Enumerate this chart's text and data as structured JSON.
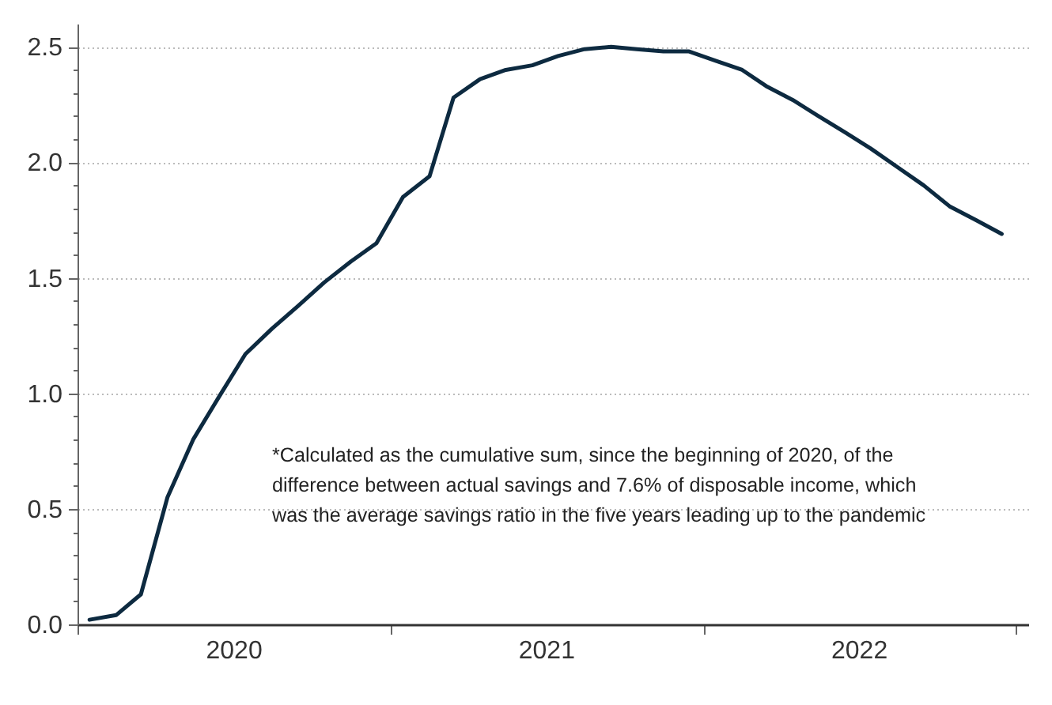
{
  "chart_data": {
    "type": "line",
    "x": [
      "2020-01-15",
      "2020-02-15",
      "2020-03-15",
      "2020-04-15",
      "2020-05-15",
      "2020-06-15",
      "2020-07-15",
      "2020-08-15",
      "2020-09-15",
      "2020-10-15",
      "2020-11-15",
      "2020-12-15",
      "2021-01-15",
      "2021-02-15",
      "2021-03-15",
      "2021-04-15",
      "2021-05-15",
      "2021-06-15",
      "2021-07-15",
      "2021-08-15",
      "2021-09-15",
      "2021-10-15",
      "2021-11-15",
      "2021-12-15",
      "2022-01-15",
      "2022-02-15",
      "2022-03-15",
      "2022-04-15",
      "2022-05-15",
      "2022-06-15",
      "2022-07-15",
      "2022-08-15",
      "2022-09-15",
      "2022-10-15",
      "2022-11-15",
      "2022-12-15"
    ],
    "series": [
      {
        "color": "#0d2a40",
        "values": [
          0.02,
          0.04,
          0.13,
          0.55,
          0.8,
          0.99,
          1.17,
          1.28,
          1.38,
          1.48,
          1.57,
          1.65,
          1.85,
          1.94,
          2.28,
          2.36,
          2.4,
          2.42,
          2.46,
          2.49,
          2.5,
          2.49,
          2.48,
          2.48,
          2.44,
          2.4,
          2.33,
          2.27,
          2.2,
          2.13,
          2.06,
          1.98,
          1.9,
          1.81,
          1.75,
          1.69
        ]
      }
    ],
    "xlim": [
      "2020-01-01",
      "2023-01-15"
    ],
    "xticks": [
      {
        "value": "2020-01-01",
        "label": null
      },
      {
        "value": "2020-07-01",
        "label": "2020"
      },
      {
        "value": "2021-01-01",
        "label": null
      },
      {
        "value": "2021-07-01",
        "label": "2021"
      },
      {
        "value": "2022-01-01",
        "label": null
      },
      {
        "value": "2022-07-01",
        "label": "2022"
      },
      {
        "value": "2023-01-01",
        "label": null
      }
    ],
    "ylim": [
      0,
      2.6
    ],
    "yticks": [
      {
        "value": 0,
        "label": "0.0"
      },
      {
        "value": 0.1,
        "label": null
      },
      {
        "value": 0.2,
        "label": null
      },
      {
        "value": 0.3,
        "label": null
      },
      {
        "value": 0.4,
        "label": null
      },
      {
        "value": 0.5,
        "label": "0.5"
      },
      {
        "value": 0.6,
        "label": null
      },
      {
        "value": 0.7,
        "label": null
      },
      {
        "value": 0.8,
        "label": null
      },
      {
        "value": 0.9,
        "label": null
      },
      {
        "value": 1,
        "label": "1.0"
      },
      {
        "value": 1.1,
        "label": null
      },
      {
        "value": 1.2,
        "label": null
      },
      {
        "value": 1.3,
        "label": null
      },
      {
        "value": 1.4,
        "label": null
      },
      {
        "value": 1.5,
        "label": "1.5"
      },
      {
        "value": 1.6,
        "label": null
      },
      {
        "value": 1.7,
        "label": null
      },
      {
        "value": 1.8,
        "label": null
      },
      {
        "value": 1.9,
        "label": null
      },
      {
        "value": 2,
        "label": "2.0"
      },
      {
        "value": 2.1,
        "label": null
      },
      {
        "value": 2.2,
        "label": null
      },
      {
        "value": 2.3,
        "label": null
      },
      {
        "value": 2.4,
        "label": null
      },
      {
        "value": 2.5,
        "label": "2.5"
      }
    ],
    "grid": "y",
    "marker": "none",
    "line_style": "solid",
    "annotations": [
      "*Calculated as the cumulative sum, since the beginning of 2020, of the\ndifference between actual savings and 7.6% of disposable income, which\nwas the average savings ratio in the five years leading up to the pandemic"
    ]
  }
}
